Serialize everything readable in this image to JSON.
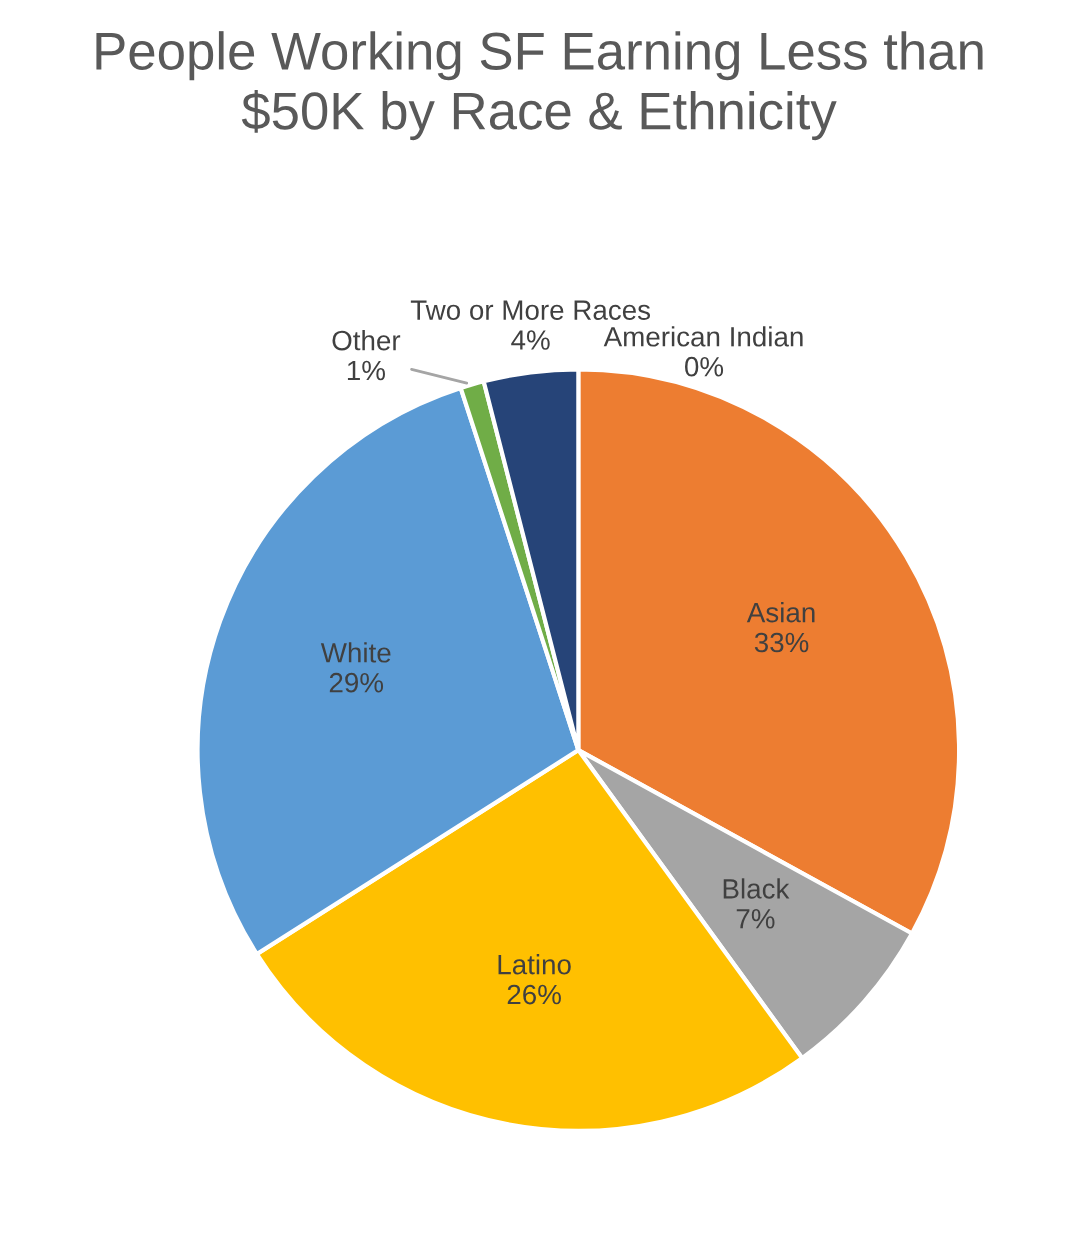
{
  "chart_data": {
    "type": "pie",
    "title": "People Working SF Earning Less than\n$50K by Race & Ethnicity",
    "categories": [
      "American Indian",
      "Asian",
      "Black",
      "Latino",
      "White",
      "Other",
      "Two or More Races"
    ],
    "values": [
      0,
      33,
      7,
      26,
      29,
      1,
      4
    ],
    "value_labels": [
      "0%",
      "33%",
      "7%",
      "26%",
      "29%",
      "1%",
      "4%"
    ],
    "colors": [
      "#4472c4",
      "#ed7d31",
      "#a5a5a5",
      "#ffc000",
      "#5b9bd5",
      "#70ad47",
      "#264478"
    ],
    "legend": false
  }
}
